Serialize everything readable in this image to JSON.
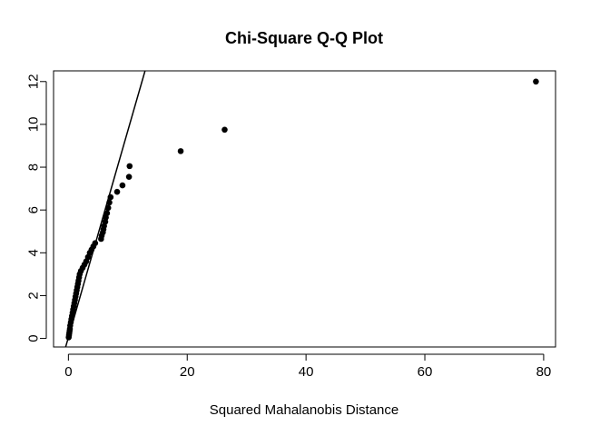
{
  "chart_data": {
    "type": "scatter",
    "title": "Chi-Square Q-Q Plot",
    "xlabel": "Squared Mahalanobis Distance",
    "ylabel": "",
    "xlim": [
      -2.5,
      82
    ],
    "ylim": [
      -0.4,
      12.5
    ],
    "xticks": [
      0,
      20,
      40,
      60,
      80
    ],
    "yticks": [
      0,
      2,
      4,
      6,
      8,
      10,
      12
    ],
    "grid": false,
    "reference_line": {
      "intercept": 0.05,
      "slope": 0.965
    },
    "series": [
      {
        "points": [
          [
            0.05,
            0.05
          ],
          [
            0.1,
            0.15
          ],
          [
            0.15,
            0.25
          ],
          [
            0.2,
            0.35
          ],
          [
            0.25,
            0.45
          ],
          [
            0.3,
            0.6
          ],
          [
            0.4,
            0.75
          ],
          [
            0.5,
            0.9
          ],
          [
            0.6,
            1.05
          ],
          [
            0.7,
            1.2
          ],
          [
            0.8,
            1.35
          ],
          [
            0.9,
            1.5
          ],
          [
            1.0,
            1.65
          ],
          [
            1.1,
            1.8
          ],
          [
            1.2,
            1.95
          ],
          [
            1.3,
            2.1
          ],
          [
            1.4,
            2.25
          ],
          [
            1.5,
            2.4
          ],
          [
            1.6,
            2.55
          ],
          [
            1.7,
            2.7
          ],
          [
            1.8,
            2.85
          ],
          [
            1.9,
            3.0
          ],
          [
            2.1,
            3.15
          ],
          [
            2.4,
            3.3
          ],
          [
            2.7,
            3.45
          ],
          [
            3.0,
            3.6
          ],
          [
            3.3,
            3.8
          ],
          [
            3.6,
            4.0
          ],
          [
            3.9,
            4.15
          ],
          [
            4.2,
            4.3
          ],
          [
            4.5,
            4.45
          ],
          [
            5.5,
            4.65
          ],
          [
            5.6,
            4.8
          ],
          [
            5.8,
            4.95
          ],
          [
            5.9,
            5.1
          ],
          [
            6.0,
            5.25
          ],
          [
            6.2,
            5.45
          ],
          [
            6.3,
            5.65
          ],
          [
            6.5,
            5.85
          ],
          [
            6.7,
            6.1
          ],
          [
            6.9,
            6.35
          ],
          [
            7.1,
            6.6
          ],
          [
            8.2,
            6.85
          ],
          [
            9.1,
            7.15
          ],
          [
            10.2,
            7.55
          ],
          [
            10.3,
            8.05
          ],
          [
            18.9,
            8.75
          ],
          [
            26.3,
            9.75
          ],
          [
            78.7,
            12.0
          ]
        ]
      }
    ]
  }
}
